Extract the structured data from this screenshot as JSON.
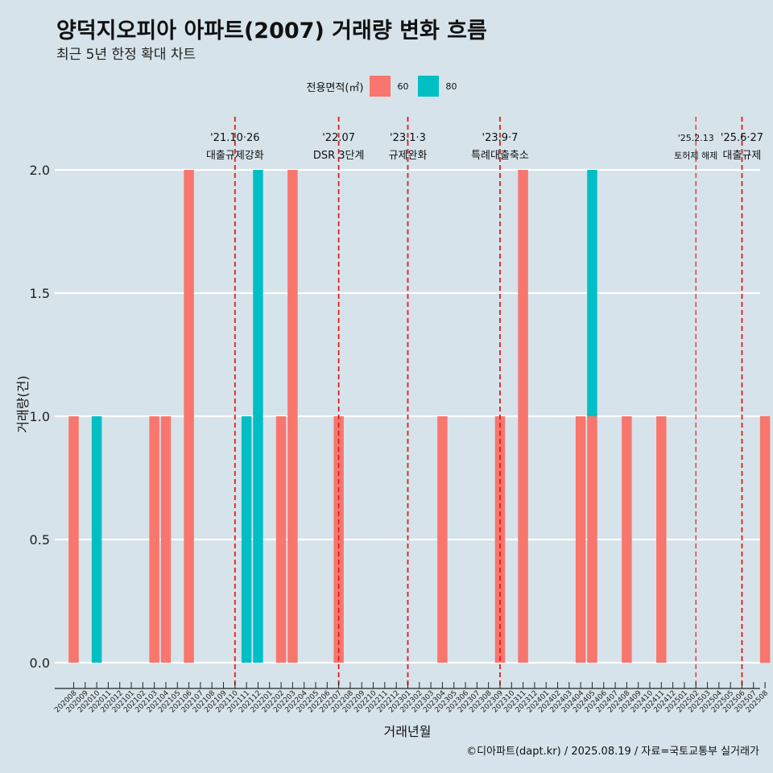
{
  "header": {
    "title": "양덕지오피아 아파트(2007) 거래량 변화 흐름",
    "subtitle": "최근 5년 한정 확대 차트"
  },
  "legend": {
    "title": "전용면적(㎡)",
    "items": [
      {
        "label": "60",
        "color": "#F8766D"
      },
      {
        "label": "80",
        "color": "#00BFC4"
      }
    ]
  },
  "footer": "©디아파트(dapt.kr) / 2025.08.19 / 자료=국토교통부 실거래가",
  "chart_data": {
    "type": "bar",
    "xlabel": "거래년월",
    "ylabel": "거래량(건)",
    "ylim": [
      -0.17,
      2.3
    ],
    "yticks": [
      "0.0",
      "0.5",
      "1.0",
      "1.5",
      "2.0"
    ],
    "categories": [
      "202008",
      "202009",
      "202010",
      "202011",
      "202012",
      "202101",
      "202102",
      "202103",
      "202104",
      "202105",
      "202106",
      "202107",
      "202108",
      "202109",
      "202110",
      "202111",
      "202112",
      "202201",
      "202202",
      "202203",
      "202204",
      "202205",
      "202206",
      "202207",
      "202208",
      "202209",
      "202210",
      "202211",
      "202212",
      "202301",
      "202302",
      "202303",
      "202304",
      "202305",
      "202306",
      "202307",
      "202308",
      "202309",
      "202310",
      "202311",
      "202312",
      "202401",
      "202402",
      "202403",
      "202404",
      "202405",
      "202406",
      "202407",
      "202408",
      "202409",
      "202410",
      "202411",
      "202412",
      "202501",
      "202502",
      "202503",
      "202504",
      "202505",
      "202506",
      "202507",
      "202508"
    ],
    "series": [
      {
        "name": "60",
        "color": "#F8766D",
        "points": [
          {
            "x": "202008",
            "y": 1
          },
          {
            "x": "202103",
            "y": 1
          },
          {
            "x": "202104",
            "y": 1
          },
          {
            "x": "202106",
            "y": 2
          },
          {
            "x": "202202",
            "y": 1
          },
          {
            "x": "202203",
            "y": 2
          },
          {
            "x": "202207",
            "y": 1
          },
          {
            "x": "202304",
            "y": 1
          },
          {
            "x": "202309",
            "y": 1
          },
          {
            "x": "202311",
            "y": 2
          },
          {
            "x": "202404",
            "y": 1
          },
          {
            "x": "202405",
            "y": 1
          },
          {
            "x": "202408",
            "y": 1
          },
          {
            "x": "202411",
            "y": 1
          },
          {
            "x": "202508",
            "y": 1
          }
        ]
      },
      {
        "name": "80",
        "color": "#00BFC4",
        "points": [
          {
            "x": "202010",
            "y": 1
          },
          {
            "x": "202111",
            "y": 1
          },
          {
            "x": "202112",
            "y": 2
          },
          {
            "x": "202405",
            "y": 1
          }
        ]
      }
    ],
    "events": [
      {
        "x": "202110",
        "date": "'21.10·26",
        "label": "대출규제강화"
      },
      {
        "x": "202207",
        "date": "'22.07",
        "label": "DSR 3단계"
      },
      {
        "x": "202301",
        "date": "'23.1·3",
        "label": "규제완화"
      },
      {
        "x": "202309",
        "date": "'23.9·7",
        "label": "특례대출축소"
      },
      {
        "x": "202502",
        "date": "'25.2.13",
        "label": "토허제 해제"
      },
      {
        "x": "202506",
        "date": "'25.6·27",
        "label": "대출규제"
      }
    ],
    "grid": true,
    "legend_position": "top"
  }
}
